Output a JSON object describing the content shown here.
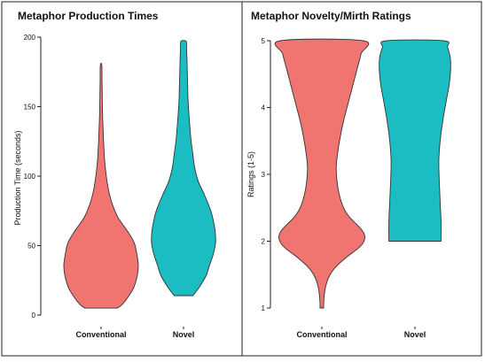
{
  "chart_data": [
    {
      "type": "violin",
      "title": "Metaphor Production Times",
      "ylabel": "Production Time (seconds)",
      "xlabel": "",
      "ylim": [
        0,
        200
      ],
      "yticks": [
        0,
        50,
        100,
        150,
        200
      ],
      "categories": [
        "Conventional",
        "Novel"
      ],
      "series": [
        {
          "name": "Conventional",
          "color": "#F07470",
          "profile": [
            [
              5,
              0.44
            ],
            [
              8,
              0.58
            ],
            [
              14,
              0.75
            ],
            [
              20,
              0.88
            ],
            [
              28,
              0.97
            ],
            [
              36,
              1.0
            ],
            [
              44,
              0.96
            ],
            [
              52,
              0.89
            ],
            [
              60,
              0.72
            ],
            [
              70,
              0.46
            ],
            [
              80,
              0.3
            ],
            [
              90,
              0.2
            ],
            [
              100,
              0.14
            ],
            [
              110,
              0.1
            ],
            [
              120,
              0.075
            ],
            [
              130,
              0.06
            ],
            [
              140,
              0.045
            ],
            [
              150,
              0.035
            ],
            [
              160,
              0.03
            ],
            [
              170,
              0.025
            ],
            [
              180,
              0.02
            ]
          ]
        },
        {
          "name": "Novel",
          "color": "#1BBDC3",
          "profile": [
            [
              14,
              0.25
            ],
            [
              20,
              0.42
            ],
            [
              28,
              0.6
            ],
            [
              36,
              0.7
            ],
            [
              44,
              0.8
            ],
            [
              52,
              0.86
            ],
            [
              60,
              0.85
            ],
            [
              68,
              0.8
            ],
            [
              76,
              0.72
            ],
            [
              86,
              0.57
            ],
            [
              96,
              0.4
            ],
            [
              106,
              0.3
            ],
            [
              116,
              0.25
            ],
            [
              126,
              0.2
            ],
            [
              136,
              0.17
            ],
            [
              146,
              0.14
            ],
            [
              156,
              0.12
            ],
            [
              166,
              0.11
            ],
            [
              176,
              0.1
            ],
            [
              186,
              0.09
            ],
            [
              192,
              0.08
            ],
            [
              197,
              0.07
            ]
          ]
        }
      ]
    },
    {
      "type": "violin",
      "title": "Metaphor Novelty/Mirth Ratings",
      "ylabel": "Ratings (1-5)",
      "xlabel": "",
      "ylim": [
        1,
        5
      ],
      "yticks": [
        1,
        2,
        3,
        4,
        5
      ],
      "categories": [
        "Conventional",
        "Novel"
      ],
      "series": [
        {
          "name": "Conventional",
          "color": "#F07470",
          "profile": [
            [
              1.0,
              0.04
            ],
            [
              1.15,
              0.05
            ],
            [
              1.3,
              0.08
            ],
            [
              1.45,
              0.15
            ],
            [
              1.6,
              0.3
            ],
            [
              1.75,
              0.55
            ],
            [
              1.9,
              0.85
            ],
            [
              2.0,
              0.97
            ],
            [
              2.1,
              0.98
            ],
            [
              2.2,
              0.88
            ],
            [
              2.35,
              0.65
            ],
            [
              2.5,
              0.5
            ],
            [
              2.7,
              0.4
            ],
            [
              2.9,
              0.35
            ],
            [
              3.1,
              0.33
            ],
            [
              3.3,
              0.36
            ],
            [
              3.55,
              0.42
            ],
            [
              3.8,
              0.5
            ],
            [
              4.05,
              0.6
            ],
            [
              4.3,
              0.7
            ],
            [
              4.55,
              0.8
            ],
            [
              4.8,
              0.9
            ],
            [
              5.0,
              0.95
            ]
          ]
        },
        {
          "name": "Novel",
          "color": "#1BBDC3",
          "profile": [
            [
              2.0,
              0.6
            ],
            [
              2.3,
              0.6
            ],
            [
              2.6,
              0.58
            ],
            [
              2.9,
              0.56
            ],
            [
              3.2,
              0.55
            ],
            [
              3.5,
              0.58
            ],
            [
              3.8,
              0.64
            ],
            [
              4.1,
              0.72
            ],
            [
              4.4,
              0.8
            ],
            [
              4.7,
              0.82
            ],
            [
              4.9,
              0.75
            ],
            [
              5.0,
              0.66
            ]
          ]
        }
      ]
    }
  ]
}
